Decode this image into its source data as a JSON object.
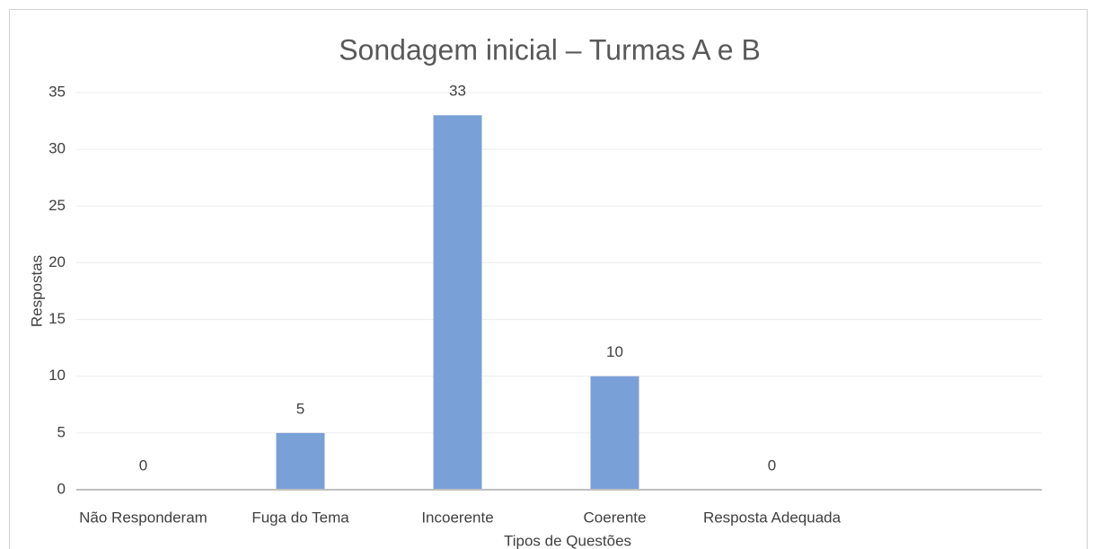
{
  "chart_data": {
    "type": "bar",
    "title": "Sondagem inicial – Turmas A e B",
    "categories": [
      "Não Responderam",
      "Fuga do Tema",
      "Incoerente",
      "Coerente",
      "Resposta Adequada"
    ],
    "values": [
      0,
      5,
      33,
      10,
      0
    ],
    "color": "#7aa0d8",
    "ylim": [
      0,
      35
    ],
    "yticks": [
      0,
      5,
      10,
      15,
      20,
      25,
      30,
      35
    ],
    "grid": true,
    "x_label": "Tipos de Questões",
    "y_label": "Respostas"
  }
}
